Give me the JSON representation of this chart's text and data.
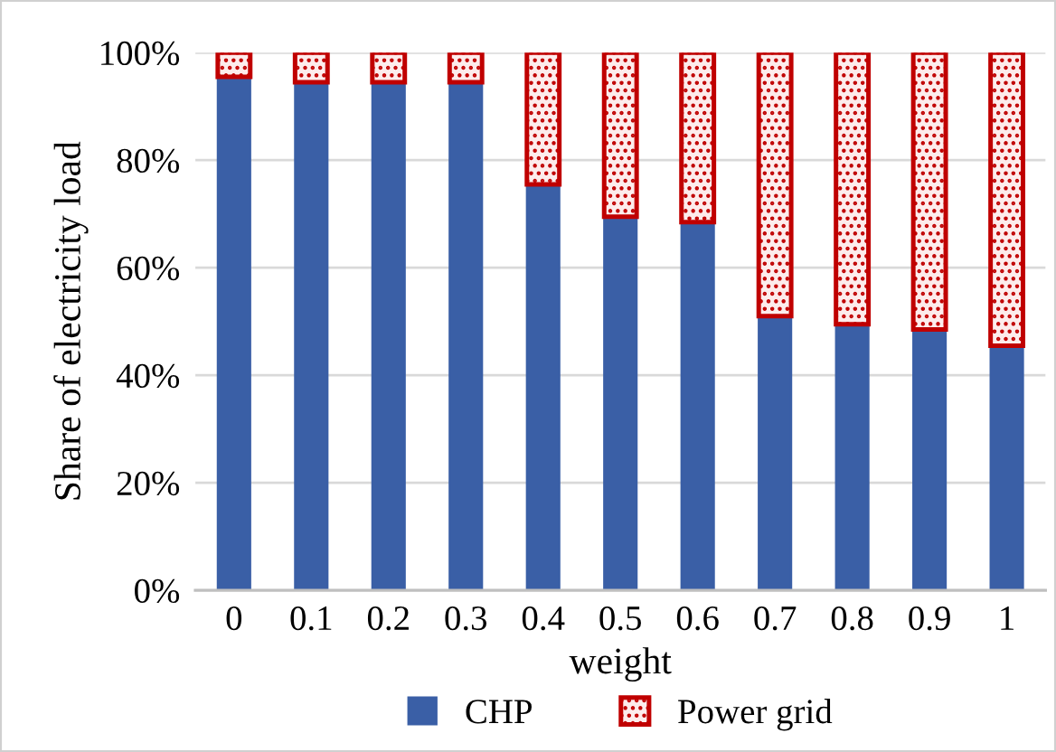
{
  "chart_data": {
    "type": "bar",
    "stacked": true,
    "xlabel": "weight",
    "ylabel": "Share of electricity load",
    "categories": [
      "0",
      "0.1",
      "0.2",
      "0.3",
      "0.4",
      "0.5",
      "0.6",
      "0.7",
      "0.8",
      "0.9",
      "1"
    ],
    "series": [
      {
        "name": "CHP",
        "color": "#3a5fa6",
        "values": [
          95.5,
          94.5,
          94.5,
          94.5,
          75.5,
          69.5,
          68.5,
          51,
          49.5,
          48.5,
          45.5
        ]
      },
      {
        "name": "Power grid",
        "color": "#c00000",
        "values": [
          4.5,
          5.5,
          5.5,
          5.5,
          24.5,
          30.5,
          31.5,
          49,
          50.5,
          51.5,
          54.5
        ]
      }
    ],
    "ylim": [
      0,
      100
    ],
    "yticks": [
      {
        "value": 0,
        "label": "0%"
      },
      {
        "value": 20,
        "label": "20%"
      },
      {
        "value": 40,
        "label": "40%"
      },
      {
        "value": 60,
        "label": "60%"
      },
      {
        "value": 80,
        "label": "80%"
      },
      {
        "value": 100,
        "label": "100%"
      }
    ],
    "grid": "y",
    "legend": "bottom"
  }
}
